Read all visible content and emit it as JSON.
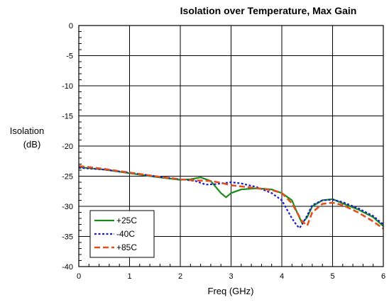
{
  "chart_data": {
    "type": "line",
    "title": "Isolation over Temperature, Max Gain",
    "xlabel": "Freq (GHz)",
    "ylabel_line1": "Isolation",
    "ylabel_line2": "(dB)",
    "xlim": [
      0,
      6
    ],
    "ylim": [
      -40,
      0
    ],
    "xticks": [
      "0",
      "1",
      "2",
      "3",
      "4",
      "5",
      "6"
    ],
    "yticks": [
      "0",
      "-5",
      "-10",
      "-15",
      "-20",
      "-25",
      "-30",
      "-35",
      "-40"
    ],
    "grid": true,
    "legend_position": "bottom-left",
    "series": [
      {
        "name": "+25C",
        "color": "#1a8a1a",
        "dash": "solid",
        "x": [
          0,
          0.5,
          1,
          1.5,
          2,
          2.2,
          2.4,
          2.6,
          2.8,
          2.9,
          3.0,
          3.2,
          3.5,
          3.8,
          4.0,
          4.2,
          4.3,
          4.4,
          4.5,
          4.6,
          4.8,
          5.0,
          5.2,
          5.5,
          5.8,
          6.0
        ],
        "y": [
          -23.5,
          -23.9,
          -24.5,
          -25.1,
          -25.6,
          -25.5,
          -25.2,
          -25.8,
          -27.8,
          -28.5,
          -27.8,
          -27.2,
          -27.0,
          -27.2,
          -27.8,
          -29.0,
          -31.0,
          -32.8,
          -31.8,
          -30.0,
          -29.0,
          -28.8,
          -29.5,
          -30.5,
          -31.8,
          -33.3
        ]
      },
      {
        "name": "-40C",
        "color": "#1a1acc",
        "dash": "dotted",
        "x": [
          0,
          0.5,
          1,
          1.5,
          2,
          2.3,
          2.5,
          2.7,
          3.0,
          3.2,
          3.5,
          3.8,
          4.0,
          4.1,
          4.2,
          4.3,
          4.35,
          4.4,
          4.5,
          4.6,
          4.8,
          5.0,
          5.2,
          5.5,
          5.8,
          6.0
        ],
        "y": [
          -23.6,
          -23.9,
          -24.4,
          -25.0,
          -25.5,
          -25.8,
          -26.4,
          -26.3,
          -26.0,
          -26.2,
          -26.8,
          -27.8,
          -29.0,
          -30.5,
          -32.0,
          -33.2,
          -33.6,
          -33.0,
          -31.5,
          -29.8,
          -29.0,
          -28.9,
          -29.3,
          -30.3,
          -31.6,
          -33.0
        ]
      },
      {
        "name": "+85C",
        "color": "#e05020",
        "dash": "dashed",
        "x": [
          0,
          0.5,
          1,
          1.5,
          2,
          2.3,
          2.6,
          2.8,
          3.0,
          3.2,
          3.5,
          3.8,
          4.0,
          4.2,
          4.3,
          4.4,
          4.5,
          4.6,
          4.8,
          5.0,
          5.2,
          5.5,
          5.8,
          6.0
        ],
        "y": [
          -23.3,
          -23.8,
          -24.4,
          -25.0,
          -25.5,
          -25.7,
          -25.8,
          -26.1,
          -26.5,
          -26.7,
          -27.0,
          -27.3,
          -27.8,
          -29.5,
          -31.0,
          -32.5,
          -33.2,
          -31.0,
          -29.6,
          -29.4,
          -29.8,
          -31.0,
          -32.5,
          -33.7
        ]
      }
    ]
  }
}
